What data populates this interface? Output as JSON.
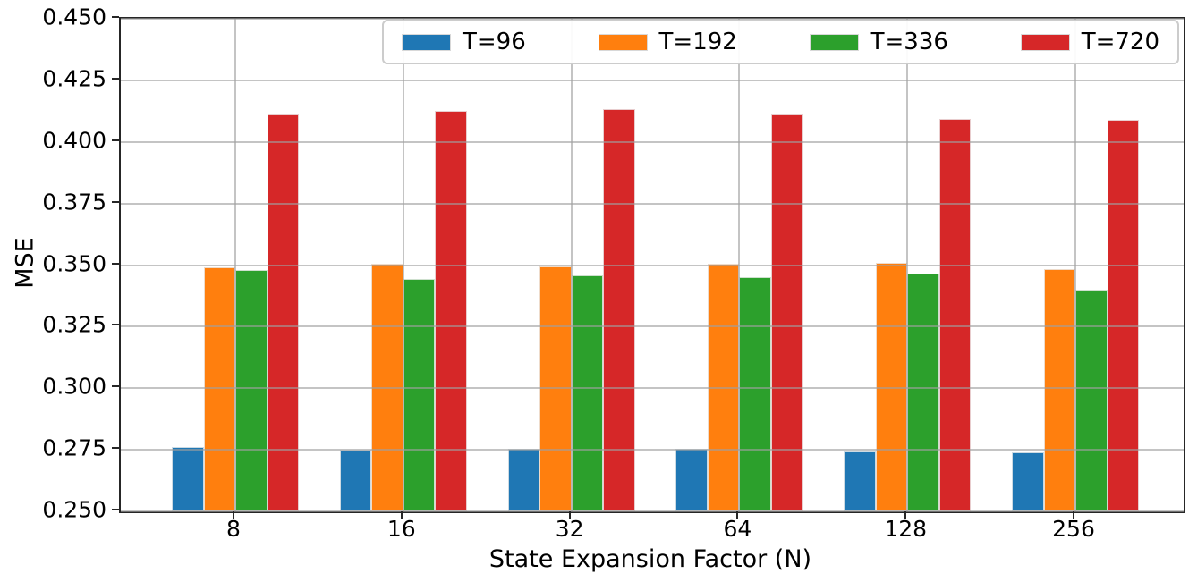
{
  "chart_data": {
    "type": "bar",
    "title": "",
    "xlabel": "State Expansion Factor (N)",
    "ylabel": "MSE",
    "categories": [
      "8",
      "16",
      "32",
      "64",
      "128",
      "256"
    ],
    "series": [
      {
        "name": "T=96",
        "color": "#1f77b4",
        "values": [
          0.276,
          0.275,
          0.2755,
          0.2755,
          0.2745,
          0.274
        ]
      },
      {
        "name": "T=192",
        "color": "#ff7f0e",
        "values": [
          0.349,
          0.3505,
          0.3495,
          0.3505,
          0.351,
          0.3485
        ]
      },
      {
        "name": "T=336",
        "color": "#2ca02c",
        "values": [
          0.348,
          0.3445,
          0.346,
          0.345,
          0.3465,
          0.34
        ]
      },
      {
        "name": "T=720",
        "color": "#d62728",
        "values": [
          0.411,
          0.4125,
          0.4135,
          0.411,
          0.4095,
          0.409
        ]
      }
    ],
    "ylim": [
      0.25,
      0.45
    ],
    "yticks": [
      "0.250",
      "0.275",
      "0.300",
      "0.325",
      "0.350",
      "0.375",
      "0.400",
      "0.425",
      "0.450"
    ],
    "grid": true,
    "grid_above_bars": true,
    "legend_position": "upper center",
    "spine_color": "#262626",
    "grid_color": "#b0b0b0"
  }
}
